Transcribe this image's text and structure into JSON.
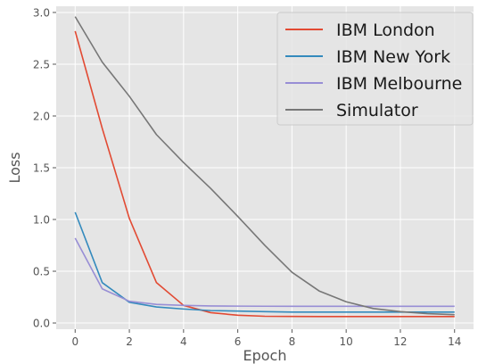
{
  "chart_data": {
    "type": "line",
    "title": "",
    "xlabel": "Epoch",
    "ylabel": "Loss",
    "xlim": [
      -0.7,
      14.7
    ],
    "ylim": [
      -0.06,
      3.06
    ],
    "xticks": [
      0,
      2,
      4,
      6,
      8,
      10,
      12,
      14
    ],
    "yticks": [
      0.0,
      0.5,
      1.0,
      1.5,
      2.0,
      2.5,
      3.0
    ],
    "xtick_labels": [
      "0",
      "2",
      "4",
      "6",
      "8",
      "10",
      "12",
      "14"
    ],
    "ytick_labels": [
      "0.0",
      "0.5",
      "1.0",
      "1.5",
      "2.0",
      "2.5",
      "3.0"
    ],
    "grid": true,
    "legend_position": "top-right",
    "x": [
      0,
      1,
      2,
      3,
      4,
      5,
      6,
      7,
      8,
      9,
      10,
      11,
      12,
      13,
      14
    ],
    "series": [
      {
        "name": "IBM London",
        "color": "#E24A33",
        "values": [
          2.82,
          1.88,
          1.01,
          0.39,
          0.17,
          0.1,
          0.075,
          0.065,
          0.063,
          0.062,
          0.062,
          0.062,
          0.062,
          0.062,
          0.062
        ]
      },
      {
        "name": "IBM New York",
        "color": "#348ABD",
        "values": [
          1.07,
          0.39,
          0.2,
          0.155,
          0.135,
          0.12,
          0.115,
          0.11,
          0.105,
          0.105,
          0.105,
          0.105,
          0.105,
          0.105,
          0.105
        ]
      },
      {
        "name": "IBM Melbourne",
        "color": "#988ED5",
        "values": [
          0.82,
          0.33,
          0.21,
          0.18,
          0.17,
          0.165,
          0.163,
          0.162,
          0.161,
          0.161,
          0.161,
          0.161,
          0.161,
          0.161,
          0.161
        ]
      },
      {
        "name": "Simulator",
        "color": "#777777",
        "values": [
          2.96,
          2.52,
          2.19,
          1.82,
          1.55,
          1.3,
          1.03,
          0.75,
          0.49,
          0.31,
          0.205,
          0.14,
          0.11,
          0.09,
          0.08
        ]
      }
    ]
  }
}
